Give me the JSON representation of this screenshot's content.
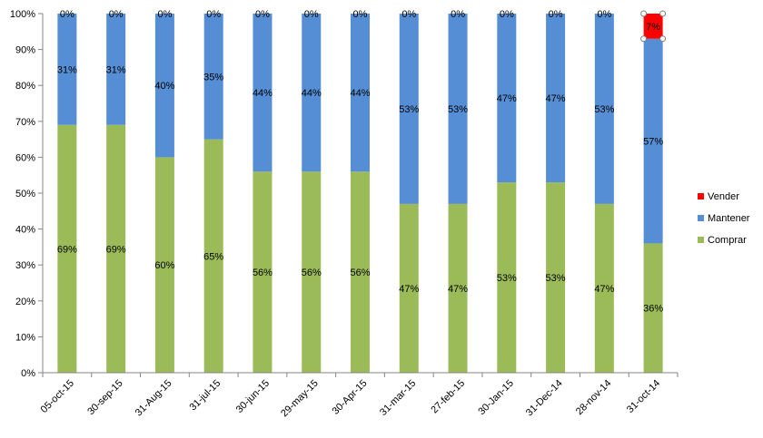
{
  "chart_data": {
    "type": "bar",
    "stacked": "percent",
    "categories": [
      "05-oct-15",
      "30-sep-15",
      "31-Aug-15",
      "31-jul-15",
      "30-jun-15",
      "29-may-15",
      "30-Apr-15",
      "31-mar-15",
      "27-feb-15",
      "30-Jan-15",
      "31-Dec-14",
      "28-nov-14",
      "31-oct-14"
    ],
    "series": [
      {
        "name": "Comprar",
        "color": "#9BBB59",
        "values": [
          69,
          69,
          60,
          65,
          56,
          56,
          56,
          47,
          47,
          53,
          53,
          47,
          36
        ],
        "labels": [
          "69%",
          "69%",
          "60%",
          "65%",
          "56%",
          "56%",
          "56%",
          "47%",
          "47%",
          "53%",
          "53%",
          "47%",
          "36%"
        ]
      },
      {
        "name": "Mantener",
        "color": "#558ED5",
        "values": [
          31,
          31,
          40,
          35,
          44,
          44,
          44,
          53,
          53,
          47,
          47,
          53,
          57
        ],
        "labels": [
          "31%",
          "31%",
          "40%",
          "35%",
          "44%",
          "44%",
          "44%",
          "53%",
          "53%",
          "47%",
          "47%",
          "53%",
          "57%"
        ]
      },
      {
        "name": "Vender",
        "color": "#FF0000",
        "values": [
          0,
          0,
          0,
          0,
          0,
          0,
          0,
          0,
          0,
          0,
          0,
          0,
          7
        ],
        "labels": [
          "0%",
          "0%",
          "0%",
          "0%",
          "0%",
          "0%",
          "0%",
          "0%",
          "0%",
          "0%",
          "0%",
          "0%",
          "7%"
        ]
      }
    ],
    "yticks": [
      "0%",
      "10%",
      "20%",
      "30%",
      "40%",
      "50%",
      "60%",
      "70%",
      "80%",
      "90%",
      "100%"
    ],
    "ylim": [
      0,
      100
    ],
    "grid": false,
    "legend": {
      "position": "right",
      "items": [
        {
          "name": "Vender",
          "color": "#FF0000"
        },
        {
          "name": "Mantener",
          "color": "#558ED5"
        },
        {
          "name": "Comprar",
          "color": "#9BBB59"
        }
      ]
    },
    "selected": {
      "series": "Vender",
      "category": "31-oct-14"
    }
  }
}
